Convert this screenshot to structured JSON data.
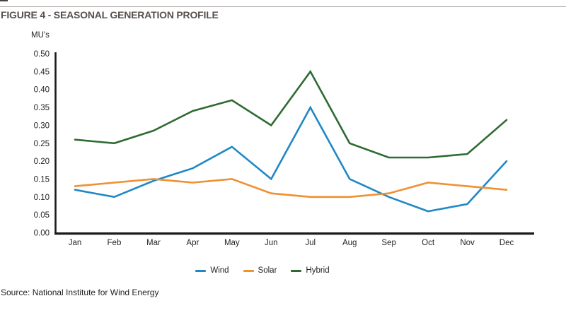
{
  "figure": {
    "title": "FIGURE 4 - SEASONAL GENERATION PROFILE",
    "unit_label": "MU's",
    "source": "Source: National Institute for Wind Energy"
  },
  "colors": {
    "title_text": "#57504d",
    "axis_text": "#231f20",
    "axis_line": "#1c1a19",
    "top_rule": "#aba8a7",
    "wind": "#2088c6",
    "solar": "#f09030",
    "hybrid": "#2e6b32"
  },
  "chart_data": {
    "type": "line",
    "title": "FIGURE 4 - SEASONAL GENERATION PROFILE",
    "xlabel": "",
    "ylabel": "MU's",
    "categories": [
      "Jan",
      "Feb",
      "Mar",
      "Apr",
      "May",
      "Jun",
      "Jul",
      "Aug",
      "Sep",
      "Oct",
      "Nov",
      "Dec"
    ],
    "series": [
      {
        "name": "Wind",
        "color": "#2088c6",
        "values": [
          0.12,
          0.1,
          0.145,
          0.18,
          0.24,
          0.15,
          0.35,
          0.15,
          0.1,
          0.06,
          0.08,
          0.2
        ]
      },
      {
        "name": "Solar",
        "color": "#f09030",
        "values": [
          0.13,
          0.14,
          0.15,
          0.14,
          0.15,
          0.11,
          0.1,
          0.1,
          0.11,
          0.14,
          0.13,
          0.12
        ]
      },
      {
        "name": "Hybrid",
        "color": "#2e6b32",
        "values": [
          0.26,
          0.25,
          0.285,
          0.34,
          0.37,
          0.3,
          0.45,
          0.25,
          0.21,
          0.21,
          0.22,
          0.315
        ]
      }
    ],
    "ylim": [
      0,
      0.5
    ],
    "ytick_step": 0.05,
    "ytick_format_decimals": 2,
    "grid": false,
    "legend_position": "bottom",
    "legend_entries": [
      "Wind",
      "Solar",
      "Hybrid"
    ]
  }
}
